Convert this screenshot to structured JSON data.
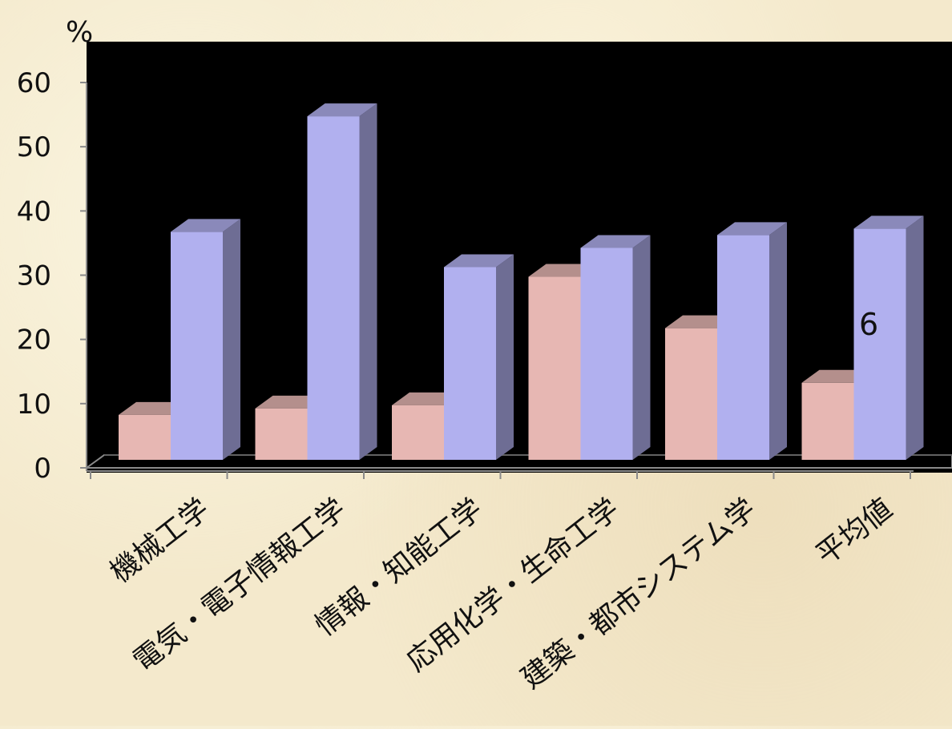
{
  "chart_data": {
    "type": "bar",
    "unit_label": "%",
    "categories": [
      "機械工学",
      "電気・電子情報工学",
      "情報・知能工学",
      "応用化学・生命工学",
      "建築・都市システム学",
      "平均値"
    ],
    "series": [
      {
        "values": [
          7,
          8,
          8.5,
          28.5,
          20.5,
          12
        ],
        "color": "#e7b7b3"
      },
      {
        "values": [
          35.5,
          53.5,
          30,
          33,
          35,
          36
        ],
        "color": "#b1b0ef"
      }
    ],
    "ylim": [
      0,
      60
    ],
    "yticks": [
      0,
      10,
      20,
      30,
      40,
      50,
      60
    ],
    "annotation": "6",
    "plot_background": "#000000",
    "grid": false
  }
}
